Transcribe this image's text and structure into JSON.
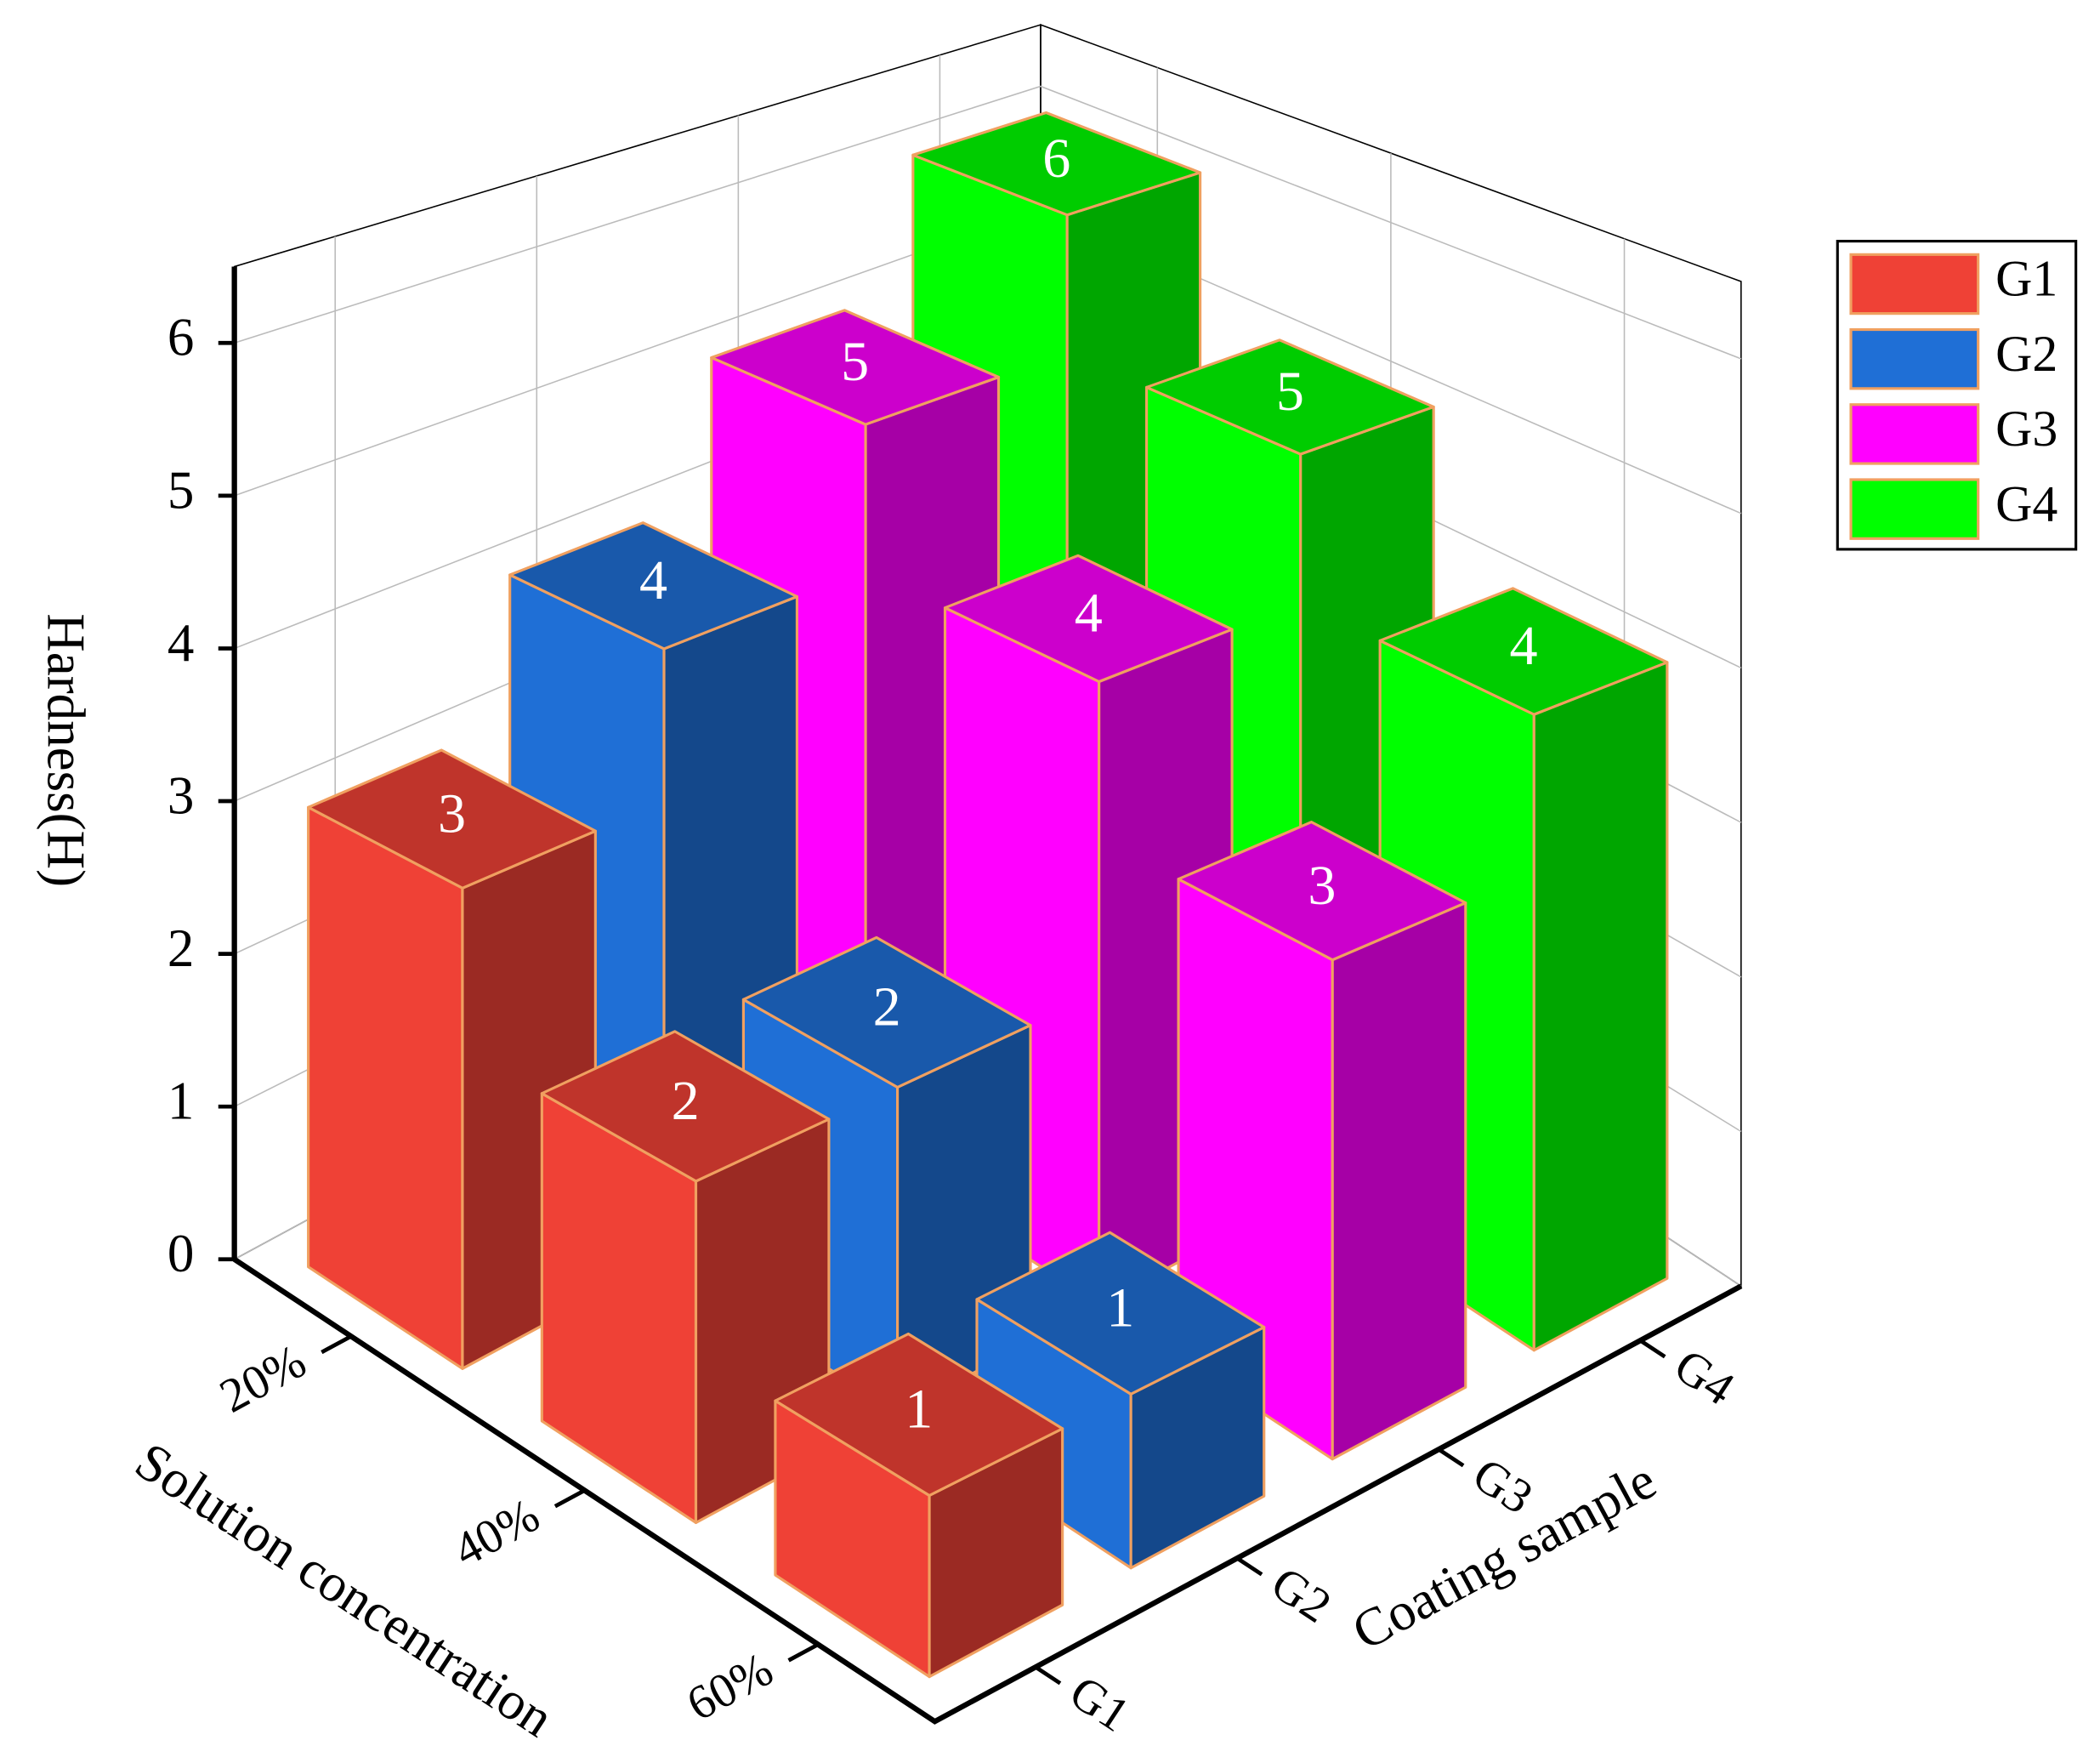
{
  "chart_data": {
    "type": "bar3d",
    "ylabel": "Hardness(H)",
    "xlabel": "Solution concentration",
    "depth_label": "Coating sample",
    "categories": [
      "20%",
      "40%",
      "60%"
    ],
    "series": [
      {
        "name": "G1",
        "color": "#ef4136",
        "values": [
          3,
          2,
          1
        ]
      },
      {
        "name": "G2",
        "color": "#1f6fd6",
        "values": [
          4,
          2,
          1
        ]
      },
      {
        "name": "G3",
        "color": "#ff00ff",
        "values": [
          5,
          4,
          3
        ]
      },
      {
        "name": "G4",
        "color": "#00ff00",
        "values": [
          6,
          5,
          4
        ]
      }
    ],
    "ylim": [
      0,
      6.5
    ],
    "yticks": [
      0,
      1,
      2,
      3,
      4,
      5,
      6
    ],
    "grid": true,
    "legend": "right"
  }
}
